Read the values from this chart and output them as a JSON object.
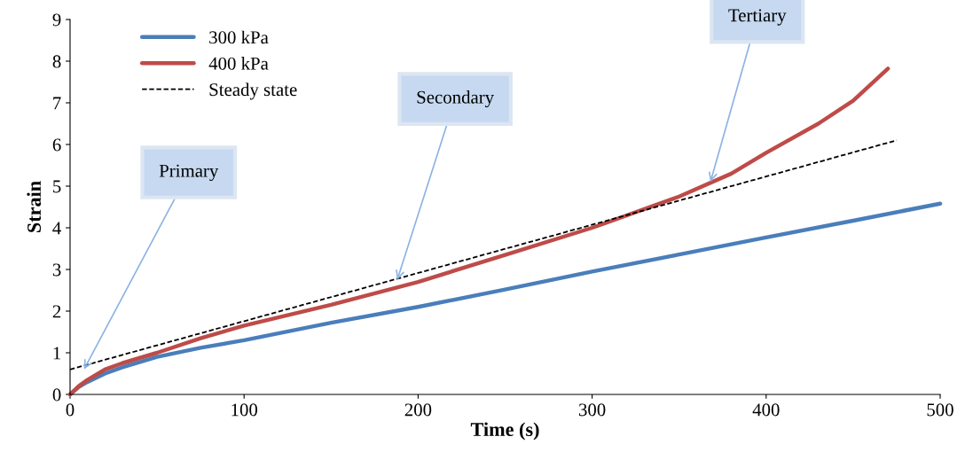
{
  "chart_data": {
    "type": "line",
    "xlabel": "Time (s)",
    "ylabel": "Strain",
    "series": [
      {
        "name": "300 kPa",
        "color": "#4a7ebb",
        "line_style": "solid",
        "x": [
          0,
          5,
          10,
          20,
          30,
          50,
          75,
          100,
          150,
          200,
          250,
          300,
          350,
          400,
          450,
          500
        ],
        "values": [
          0,
          0.18,
          0.3,
          0.5,
          0.65,
          0.9,
          1.12,
          1.3,
          1.72,
          2.1,
          2.52,
          2.95,
          3.36,
          3.77,
          4.17,
          4.58
        ]
      },
      {
        "name": "400 kPa",
        "color": "#be4b48",
        "line_style": "solid",
        "x": [
          0,
          5,
          10,
          20,
          30,
          50,
          75,
          100,
          150,
          200,
          250,
          300,
          350,
          380,
          400,
          430,
          450,
          470
        ],
        "values": [
          0,
          0.2,
          0.35,
          0.6,
          0.75,
          1.0,
          1.35,
          1.65,
          2.15,
          2.7,
          3.35,
          4.0,
          4.75,
          5.3,
          5.8,
          6.5,
          7.05,
          7.82
        ]
      },
      {
        "name": "Steady state",
        "color": "#000000",
        "line_style": "dashed",
        "x": [
          0,
          475
        ],
        "values": [
          0.6,
          6.1
        ]
      }
    ],
    "annotations": [
      {
        "text": "Primary",
        "x": 8,
        "y": 0.6
      },
      {
        "text": "Secondary",
        "x": 188,
        "y": 2.75
      },
      {
        "text": "Tertiary",
        "x": 368,
        "y": 5.1
      }
    ],
    "xlim": [
      0,
      500
    ],
    "xticks": [
      0,
      100,
      200,
      300,
      400,
      500
    ],
    "ylim": [
      0,
      9
    ],
    "yticks": [
      0,
      1,
      2,
      3,
      4,
      5,
      6,
      7,
      8,
      9
    ],
    "grid": false,
    "legend": "top left"
  }
}
